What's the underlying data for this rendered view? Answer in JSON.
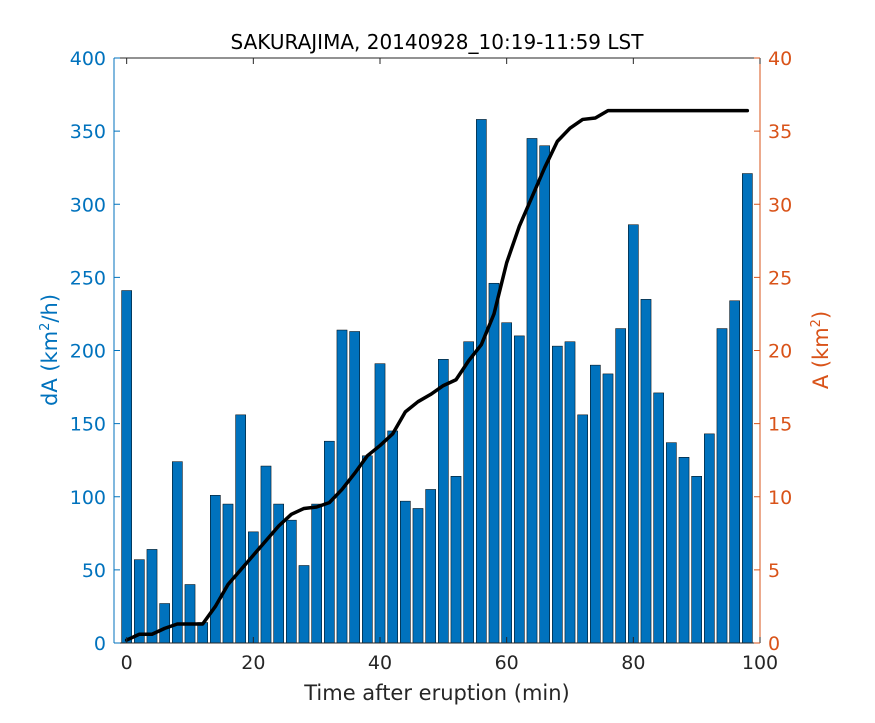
{
  "chart_data": {
    "type": "bar",
    "title": "SAKURAJIMA, 20140928_10:19-11:59 LST",
    "xlabel": "Time after eruption (min)",
    "ylabel_left": {
      "base": "dA (km",
      "sup": "2",
      "tail": "/h)"
    },
    "ylabel_right": {
      "base": "A (km",
      "sup": "2",
      "tail": ")"
    },
    "xlim": [
      -2,
      100
    ],
    "ylim_left": [
      0,
      400
    ],
    "ylim_right": [
      0,
      40
    ],
    "x_ticks": [
      "0",
      "20",
      "40",
      "60",
      "80",
      "100"
    ],
    "y_left_ticks": [
      "0",
      "50",
      "100",
      "150",
      "200",
      "250",
      "300",
      "350",
      "400"
    ],
    "y_right_ticks": [
      "0",
      "5",
      "10",
      "15",
      "20",
      "25",
      "30",
      "35",
      "40"
    ],
    "colors": {
      "bars": "#0072BD",
      "line": "#000000",
      "left_axis": "#0072BD",
      "right_axis": "#D95319"
    },
    "series": [
      {
        "type": "bar",
        "axis": "left",
        "x": [
          0,
          2,
          4,
          6,
          8,
          10,
          12,
          14,
          16,
          18,
          20,
          22,
          24,
          26,
          28,
          30,
          32,
          34,
          36,
          38,
          40,
          42,
          44,
          46,
          48,
          50,
          52,
          54,
          56,
          58,
          60,
          62,
          64,
          66,
          68,
          70,
          72,
          74,
          76,
          78,
          80,
          82,
          84,
          86,
          88,
          90,
          92,
          94,
          96,
          98
        ],
        "values": [
          241,
          57,
          64,
          27,
          124,
          40,
          14,
          101,
          95,
          156,
          76,
          121,
          95,
          84,
          53,
          95,
          138,
          214,
          213,
          128,
          191,
          145,
          97,
          92,
          105,
          194,
          114,
          206,
          358,
          246,
          219,
          210,
          345,
          340,
          203,
          206,
          156,
          190,
          184,
          215,
          286,
          235,
          171,
          137,
          127,
          114,
          143,
          215,
          234,
          321
        ]
      },
      {
        "type": "line",
        "axis": "right",
        "x": [
          0,
          2,
          4,
          6,
          8,
          10,
          12,
          14,
          16,
          18,
          20,
          22,
          24,
          26,
          28,
          30,
          32,
          34,
          36,
          38,
          40,
          42,
          44,
          46,
          48,
          50,
          52,
          54,
          56,
          58,
          60,
          62,
          64,
          66,
          68,
          70,
          72,
          74,
          76,
          78,
          80,
          82,
          84,
          86,
          88,
          90,
          92,
          94,
          96,
          98
        ],
        "values": [
          0.2,
          0.6,
          0.6,
          1.0,
          1.3,
          1.3,
          1.3,
          2.5,
          4.0,
          5.0,
          6.0,
          7.0,
          8.0,
          8.8,
          9.2,
          9.3,
          9.6,
          10.5,
          11.6,
          12.8,
          13.5,
          14.3,
          15.8,
          16.5,
          17.0,
          17.6,
          18.0,
          19.3,
          20.4,
          22.5,
          26.0,
          28.5,
          30.5,
          32.5,
          34.3,
          35.2,
          35.8,
          35.9,
          36.4,
          36.4,
          36.4,
          36.4,
          36.4,
          36.4,
          36.4,
          36.4,
          36.4,
          36.4,
          36.4,
          36.4
        ]
      }
    ]
  }
}
